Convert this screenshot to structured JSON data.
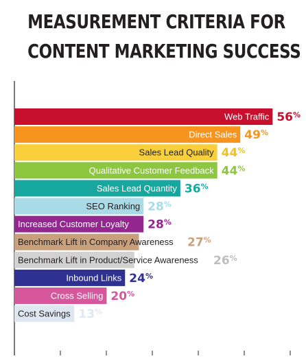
{
  "chart_data": {
    "type": "bar",
    "orientation": "horizontal",
    "title_lines": [
      "MEASUREMENT CRITERIA FOR",
      "CONTENT MARKETING SUCCESS"
    ],
    "xlim": [
      0,
      60
    ],
    "grid": false,
    "categories": [
      "Web Traffic",
      "Direct Sales",
      "Sales Lead Quality",
      "Qualitative Customer Feedback",
      "Sales Lead Quantity",
      "SEO Ranking",
      "Increased Customer Loyalty",
      "Benchmark Lift in Company Awareness",
      "Benchmark Lift in Product/Service Awareness",
      "Inbound Links",
      "Cross Selling",
      "Cost Savings"
    ],
    "values": [
      56,
      49,
      44,
      44,
      36,
      28,
      28,
      27,
      26,
      24,
      20,
      13
    ],
    "value_suffix": "%",
    "colors": [
      "#c8102e",
      "#f7941d",
      "#f9d03c",
      "#8dc63f",
      "#16a89e",
      "#a8dbe6",
      "#93278f",
      "#c8a07c",
      "#d2d2d2",
      "#2e3192",
      "#d6579b",
      "#dfe7f3"
    ],
    "value_colors": [
      "#c8102e",
      "#f7941d",
      "#f1c21b",
      "#8dc63f",
      "#16a89e",
      "#a8dbe6",
      "#93278f",
      "#c8a07c",
      "#bdbdbd",
      "#2e3192",
      "#d6579b",
      "#dfe7f3"
    ],
    "label_colors": [
      "#ffffff",
      "#ffffff",
      "#231f20",
      "#ffffff",
      "#ffffff",
      "#231f20",
      "#ffffff",
      "#231f20",
      "#231f20",
      "#ffffff",
      "#ffffff",
      "#231f20"
    ]
  }
}
